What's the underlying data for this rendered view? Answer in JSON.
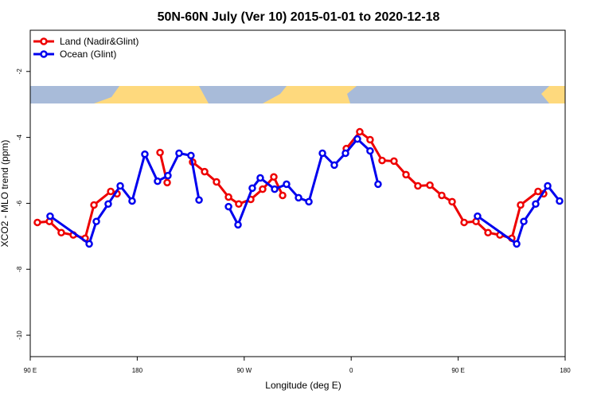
{
  "chart_data": {
    "type": "line",
    "title": "50N-60N July (Ver 10)   2015-01-01 to 2020-12-18",
    "xlabel": "Longitude (deg E)",
    "ylabel": "XCO2 - MLO trend (ppm)",
    "xlim": [
      90,
      540
    ],
    "xticks": [
      {
        "value": 90,
        "label": "90 E"
      },
      180,
      {
        "value": 270,
        "label": "90 W"
      },
      {
        "value": 360,
        "label": "0"
      },
      {
        "value": 450,
        "label": "90 E"
      },
      {
        "value": 540,
        "label": "180"
      }
    ],
    "ylim": [
      -10.65,
      -0.75
    ],
    "yticks": [
      -2,
      -4,
      -6,
      -8,
      -10
    ],
    "legend": "top-left",
    "series": [
      {
        "name": "Land (Nadir&Glint)",
        "color": "#ee0000",
        "x": [
          96.0,
          106.1,
          116.1,
          126.2,
          136.2,
          143.6,
          157.7,
          163.0,
          null,
          199.2,
          205.2,
          null,
          226.6,
          236.7,
          246.7,
          256.8,
          265.4,
          275.5,
          285.5,
          294.9,
          302.3,
          null,
          355.9,
          367.2,
          375.9,
          386.0,
          396.0,
          406.1,
          416.1,
          426.2,
          436.2,
          444.9,
          455.0,
          465.0,
          475.1,
          485.1,
          495.1,
          502.5,
          517.2,
          521.9
        ],
        "values": [
          -6.58,
          -6.55,
          -6.89,
          -6.96,
          -7.06,
          -6.05,
          -5.64,
          -5.71,
          null,
          -4.46,
          -5.37,
          null,
          -4.75,
          -5.04,
          -5.35,
          -5.81,
          -6.02,
          -5.88,
          -5.57,
          -5.2,
          -5.76,
          null,
          -4.34,
          -3.83,
          -4.07,
          -4.7,
          -4.72,
          -5.13,
          -5.47,
          -5.45,
          -5.76,
          -5.95,
          -6.58,
          -6.55,
          -6.89,
          -6.96,
          -7.06,
          -6.05,
          -5.64,
          -5.71
        ]
      },
      {
        "name": "Ocean (Glint)",
        "color": "#0000ee",
        "x": [
          106.7,
          139.6,
          145.6,
          155.6,
          165.7,
          175.7,
          186.4,
          197.1,
          205.8,
          215.2,
          225.2,
          232.0,
          null,
          256.8,
          264.8,
          276.8,
          283.5,
          295.6,
          305.6,
          315.7,
          324.4,
          335.8,
          345.8,
          355.2,
          365.2,
          375.9,
          382.6,
          null,
          466.3,
          499.2,
          505.2,
          515.2,
          525.3,
          535.3
        ],
        "values": [
          -6.39,
          -7.23,
          -6.55,
          -6.02,
          -5.47,
          -5.93,
          -4.51,
          -5.33,
          -5.16,
          -4.48,
          -4.55,
          -5.9,
          null,
          -6.1,
          -6.65,
          -5.54,
          -5.23,
          -5.57,
          -5.42,
          -5.83,
          -5.95,
          -4.48,
          -4.84,
          -4.48,
          -4.05,
          -4.41,
          -5.42,
          null,
          -6.39,
          -7.23,
          -6.55,
          -6.02,
          -5.47,
          -5.93
        ]
      }
    ]
  }
}
